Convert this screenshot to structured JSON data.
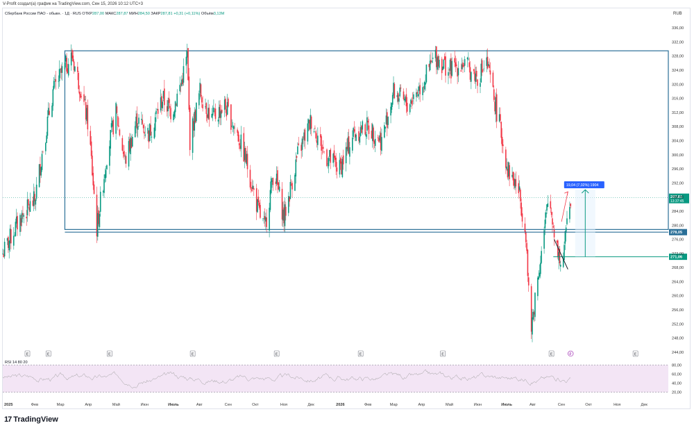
{
  "header": {
    "created_line": "V-Profit создал(а) график на TradingView.com, Сен 15, 2026 10:12 UTC+3"
  },
  "legend": {
    "symbol": "Сбербанк России ПАО - обыкн. · 1Д · RUS",
    "open_label": "ОТКР",
    "open": "287,00",
    "high_label": "МАКС",
    "high": "287,87",
    "low_label": "МИН",
    "low": "284,50",
    "close_label": "ЗАКР",
    "close": "287,81",
    "change": "+0,31 (+0,11%)",
    "volume_label": "Объём",
    "volume": "3,13M"
  },
  "currency": "RUB",
  "brand": {
    "mark": "17",
    "name": "TradingView"
  },
  "colors": {
    "up": "#089981",
    "down": "#f23645",
    "box": "#2a6f97",
    "rsi_fill": "#f3e5f5",
    "rsi_line": "#9e9e9e",
    "label_blue": "#2962ff",
    "label_green": "#089981"
  },
  "chart_data": {
    "type": "candlestick",
    "title": "",
    "price_axis": {
      "ticks": [
        "336,00",
        "332,00",
        "328,00",
        "324,00",
        "320,00",
        "316,00",
        "312,00",
        "308,00",
        "304,00",
        "300,00",
        "296,00",
        "292,00",
        "288,00",
        "284,00",
        "280,00",
        "276,00",
        "272,00",
        "268,00",
        "264,00",
        "260,00",
        "256,00",
        "252,00",
        "248,00",
        "244,00"
      ],
      "ylim": [
        243,
        338
      ]
    },
    "time_axis": {
      "ticks": [
        "2025",
        "Фев",
        "Мар",
        "Апр",
        "Май",
        "Июн",
        "Июль",
        "Авг",
        "Сен",
        "Окт",
        "Ноя",
        "Дек",
        "2026",
        "Фев",
        "Мар",
        "Апр",
        "Май",
        "Июн",
        "Июль",
        "Авг",
        "Сен",
        "Окт",
        "Ноя",
        "Дек"
      ],
      "range": [
        "2025-01-01",
        "2026-12-31"
      ]
    },
    "price_path": [
      [
        "2025-01-01",
        272
      ],
      [
        "2025-01-20",
        282
      ],
      [
        "2025-02-05",
        287
      ],
      [
        "2025-02-14",
        302
      ],
      [
        "2025-02-25",
        318
      ],
      [
        "2025-03-08",
        324
      ],
      [
        "2025-03-18",
        328
      ],
      [
        "2025-03-28",
        318
      ],
      [
        "2025-04-05",
        308
      ],
      [
        "2025-04-10",
        292
      ],
      [
        "2025-04-14",
        279
      ],
      [
        "2025-04-25",
        300
      ],
      [
        "2025-05-05",
        312
      ],
      [
        "2025-05-15",
        298
      ],
      [
        "2025-05-28",
        310
      ],
      [
        "2025-06-10",
        306
      ],
      [
        "2025-06-25",
        316
      ],
      [
        "2025-07-05",
        312
      ],
      [
        "2025-07-15",
        320
      ],
      [
        "2025-07-22",
        328
      ],
      [
        "2025-07-25",
        304
      ],
      [
        "2025-08-05",
        318
      ],
      [
        "2025-08-18",
        310
      ],
      [
        "2025-09-01",
        314
      ],
      [
        "2025-09-15",
        306
      ],
      [
        "2025-09-25",
        298
      ],
      [
        "2025-10-08",
        284
      ],
      [
        "2025-10-15",
        279
      ],
      [
        "2025-10-25",
        296
      ],
      [
        "2025-11-05",
        282
      ],
      [
        "2025-11-20",
        300
      ],
      [
        "2025-12-05",
        310
      ],
      [
        "2025-12-20",
        300
      ],
      [
        "2026-01-05",
        296
      ],
      [
        "2026-01-20",
        306
      ],
      [
        "2026-02-05",
        308
      ],
      [
        "2026-02-20",
        304
      ],
      [
        "2026-03-05",
        318
      ],
      [
        "2026-03-20",
        314
      ],
      [
        "2026-04-05",
        320
      ],
      [
        "2026-04-20",
        328
      ],
      [
        "2026-05-05",
        324
      ],
      [
        "2026-05-20",
        326
      ],
      [
        "2026-06-05",
        322
      ],
      [
        "2026-06-15",
        326
      ],
      [
        "2026-06-28",
        310
      ],
      [
        "2026-07-08",
        296
      ],
      [
        "2026-07-20",
        290
      ],
      [
        "2026-07-28",
        278
      ],
      [
        "2026-08-02",
        248
      ],
      [
        "2026-08-08",
        262
      ],
      [
        "2026-08-15",
        274
      ],
      [
        "2026-08-22",
        288
      ],
      [
        "2026-08-27",
        280
      ],
      [
        "2026-09-01",
        273
      ],
      [
        "2026-09-05",
        268
      ],
      [
        "2026-09-08",
        272
      ],
      [
        "2026-09-11",
        284
      ],
      [
        "2026-09-15",
        288
      ]
    ],
    "rsi": {
      "label": "RSI 14 80 20",
      "ticks": [
        "80,00",
        "60,00",
        "40,00",
        "20,00"
      ],
      "ylim": [
        15,
        85
      ],
      "band": [
        20,
        80
      ]
    },
    "annotations": {
      "range_box": {
        "from": "2025-03-10",
        "to": "2026-12-31",
        "top": 329.5,
        "bottom": 278.8
      },
      "support_line": {
        "price": 278.05,
        "label": "278,05"
      },
      "current_price": {
        "price": 287.81,
        "label": "287,81",
        "countdown": "13:37:45"
      },
      "target_line": {
        "price": 271.06,
        "label": "271,06",
        "from": "2026-08-27"
      },
      "measure": {
        "label": "19,04 (7,02%) 1904",
        "from": "2026-09-20",
        "to": "2026-10-12",
        "low": 271.06,
        "high": 290.1
      },
      "trendline": {
        "from": [
          "2026-08-28",
          276
        ],
        "to": [
          "2026-09-12",
          267.5
        ]
      },
      "arrow": {
        "from": [
          "2026-09-05",
          281
        ],
        "to": [
          "2026-09-12",
          289.5
        ]
      },
      "event_markers": {
        "earnings_dates": [
          "2025-01-28",
          "2025-02-20",
          "2025-04-28",
          "2025-07-28",
          "2025-10-28",
          "2026-01-28",
          "2026-04-28",
          "2026-08-25",
          "2026-11-25"
        ],
        "earnings_symbol": "E",
        "dividend_date": "2026-09-15",
        "dividend_symbol": "₽"
      }
    }
  }
}
